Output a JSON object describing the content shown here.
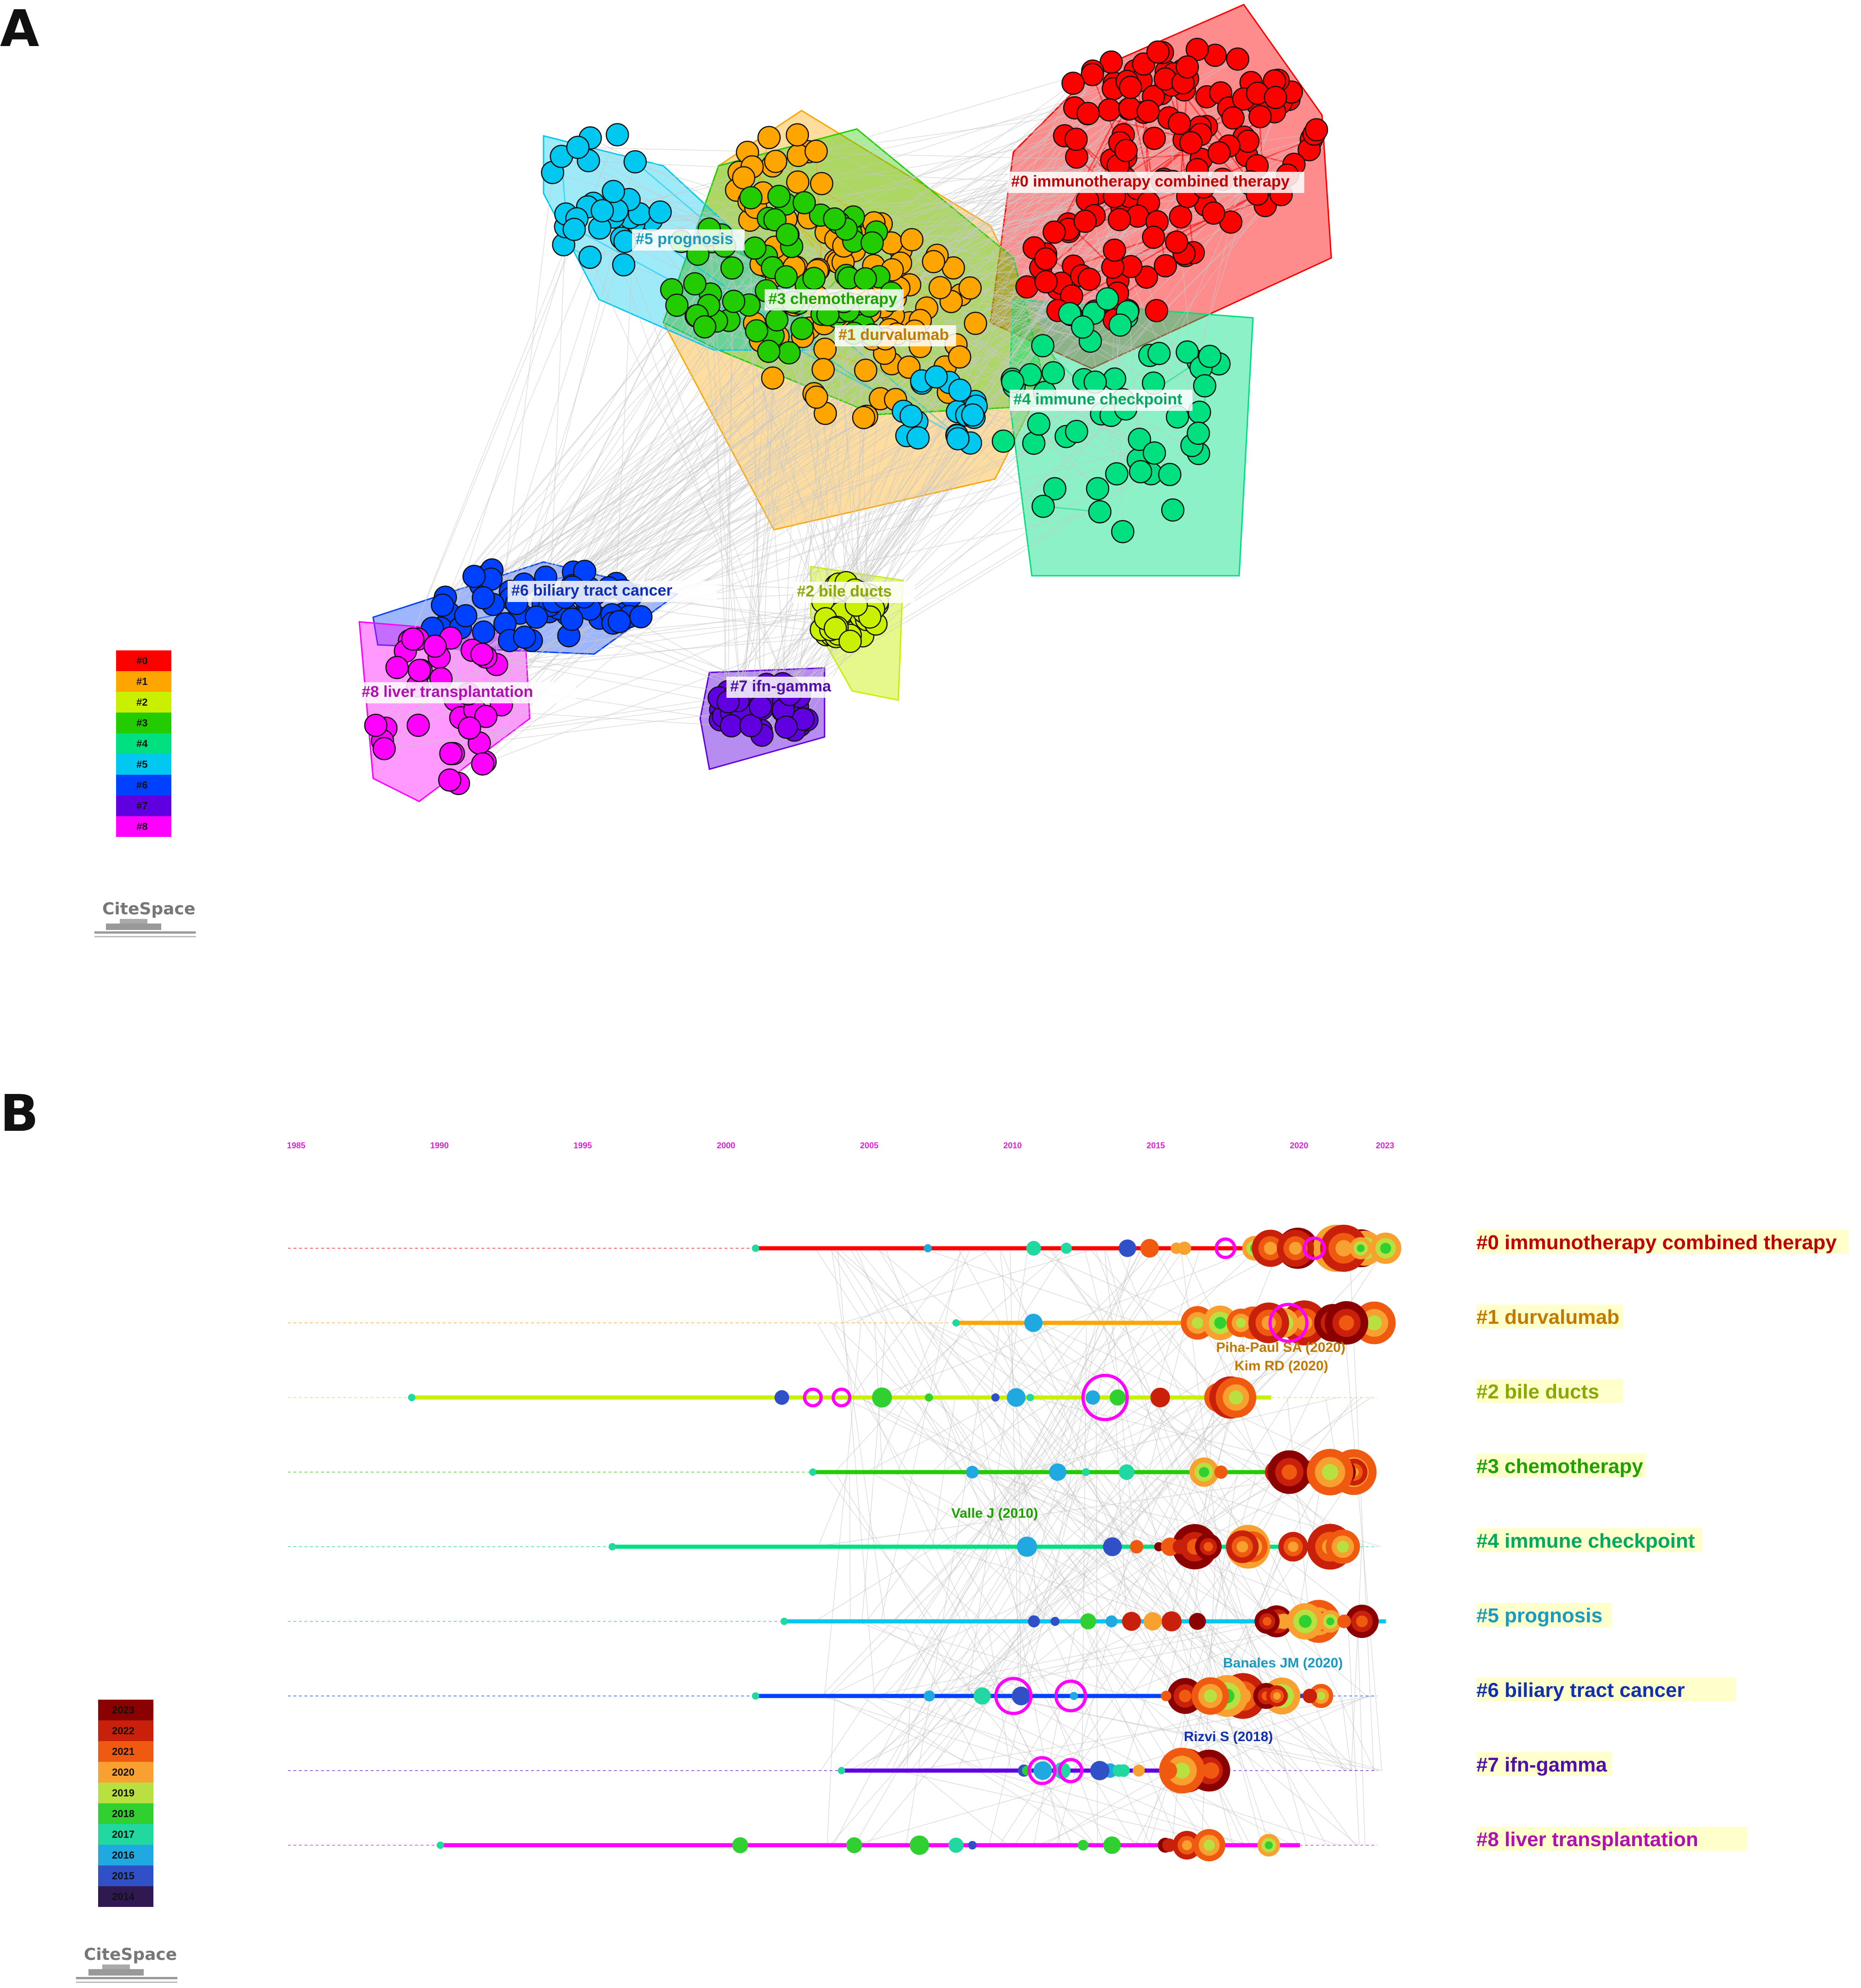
{
  "panels": {
    "a": {
      "letter": "A"
    },
    "b": {
      "letter": "B"
    }
  },
  "logo_text": "CiteSpace",
  "clusters": [
    {
      "id": "#0",
      "label": "#0 immunotherapy combined therapy",
      "color": "#ff0000",
      "text_color": "#c00000"
    },
    {
      "id": "#1",
      "label": "#1 durvalumab",
      "color": "#ffa500",
      "text_color": "#c07a00"
    },
    {
      "id": "#2",
      "label": "#2 bile ducts",
      "color": "#c8f000",
      "text_color": "#8aa800"
    },
    {
      "id": "#3",
      "label": "#3 chemotherapy",
      "color": "#22cc00",
      "text_color": "#1ea000"
    },
    {
      "id": "#4",
      "label": "#4 immune checkpoint",
      "color": "#00e080",
      "text_color": "#00a860"
    },
    {
      "id": "#5",
      "label": "#5 prognosis",
      "color": "#00c8f0",
      "text_color": "#1a9ac0"
    },
    {
      "id": "#6",
      "label": "#6 biliary tract cancer",
      "color": "#0040ff",
      "text_color": "#1030b0"
    },
    {
      "id": "#7",
      "label": "#7 ifn-gamma",
      "color": "#6000e0",
      "text_color": "#5010a8"
    },
    {
      "id": "#8",
      "label": "#8 liver transplantation",
      "color": "#ff00ff",
      "text_color": "#b010b0"
    }
  ],
  "network_legend": [
    "#0",
    "#1",
    "#2",
    "#3",
    "#4",
    "#5",
    "#6",
    "#7",
    "#8"
  ],
  "year_legend": {
    "years": [
      "2023",
      "2022",
      "2021",
      "2020",
      "2019",
      "2018",
      "2017",
      "2016",
      "2015",
      "2014"
    ],
    "colors": [
      "#8b0000",
      "#c8200a",
      "#f05a10",
      "#f8a030",
      "#b8e040",
      "#30d030",
      "#20d8a0",
      "#20a8e0",
      "#3050c8",
      "#301850"
    ]
  },
  "timeline": {
    "ticks": [
      "1985",
      "1990",
      "1995",
      "2000",
      "2005",
      "2010",
      "2015",
      "2020",
      "2023"
    ],
    "references": [
      {
        "text": "Piha-Paul SA (2020)",
        "cluster": 1
      },
      {
        "text": "Kim RD (2020)",
        "cluster": 1
      },
      {
        "text": "Valle J (2010)",
        "cluster": 3
      },
      {
        "text": "Banales JM (2020)",
        "cluster": 5
      },
      {
        "text": "Rizvi S (2018)",
        "cluster": 6
      }
    ]
  }
}
